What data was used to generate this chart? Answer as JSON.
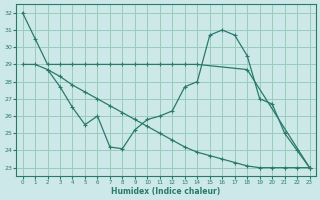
{
  "xlabel": "Humidex (Indice chaleur)",
  "bg_color": "#cce8e8",
  "grid_color": "#99ccbb",
  "line_color": "#2a7a6a",
  "xlim": [
    -0.5,
    23.5
  ],
  "ylim": [
    22.5,
    32.5
  ],
  "yticks": [
    23,
    24,
    25,
    26,
    27,
    28,
    29,
    30,
    31,
    32
  ],
  "xticks": [
    0,
    1,
    2,
    3,
    4,
    5,
    6,
    7,
    8,
    9,
    10,
    11,
    12,
    13,
    14,
    15,
    16,
    17,
    18,
    19,
    20,
    21,
    22,
    23
  ],
  "line1_x": [
    0,
    1,
    2,
    3,
    4,
    5,
    6,
    7,
    8,
    9,
    10,
    11,
    12,
    13,
    14,
    18,
    23
  ],
  "line1_y": [
    32,
    30.5,
    29,
    29,
    29,
    29,
    29,
    29,
    29,
    29,
    29,
    29,
    29,
    29,
    29,
    28.7,
    23
  ],
  "line2_x": [
    2,
    3,
    4,
    5,
    6,
    7,
    8,
    9,
    10,
    11,
    12,
    13,
    14,
    15,
    16,
    17,
    18,
    19,
    20,
    21,
    22,
    23
  ],
  "line2_y": [
    28.7,
    27.7,
    26.5,
    25.5,
    26.0,
    24.2,
    24.1,
    25.2,
    25.8,
    26.0,
    26.3,
    27.7,
    28.0,
    30.7,
    31.0,
    30.7,
    29.5,
    27.0,
    26.7,
    25.0,
    24.0,
    23
  ],
  "line3_x": [
    0,
    1,
    2,
    3,
    4,
    5,
    6,
    7,
    8,
    9,
    10,
    11,
    12,
    13,
    14,
    15,
    16,
    17,
    18,
    19,
    20,
    21,
    22,
    23
  ],
  "line3_y": [
    29.0,
    29.0,
    28.7,
    28.3,
    27.8,
    27.4,
    27.0,
    26.6,
    26.2,
    25.8,
    25.4,
    25.0,
    24.6,
    24.2,
    23.9,
    23.7,
    23.5,
    23.3,
    23.1,
    23.0,
    23.0,
    23.0,
    23.0,
    23.0
  ]
}
